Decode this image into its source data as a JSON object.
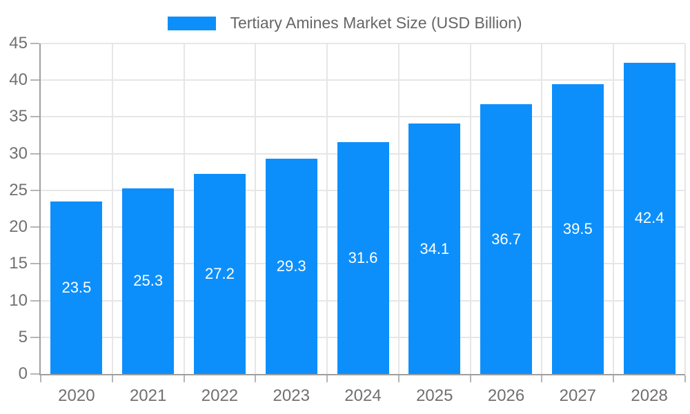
{
  "chart_data": {
    "type": "bar",
    "legend": "Tertiary Amines Market Size (USD Billion)",
    "legend_position": "top",
    "categories": [
      "2020",
      "2021",
      "2022",
      "2023",
      "2024",
      "2025",
      "2026",
      "2027",
      "2028"
    ],
    "values": [
      23.5,
      25.3,
      27.2,
      29.3,
      31.6,
      34.1,
      36.7,
      39.5,
      42.4
    ],
    "xlabel": "",
    "ylabel": "",
    "ylim": [
      0,
      45
    ],
    "yticks": [
      0,
      5,
      10,
      15,
      20,
      25,
      30,
      35,
      40,
      45
    ],
    "grid": true,
    "colors": {
      "bar": "#0d8ffb",
      "value_label": "#ffffff",
      "axis_label": "#707070",
      "legend_text": "#666666",
      "grid_line": "#e6e6e6",
      "axis_line": "#9e9e9e",
      "tick_mark": "#b5b5b5",
      "background": "#ffffff"
    }
  }
}
